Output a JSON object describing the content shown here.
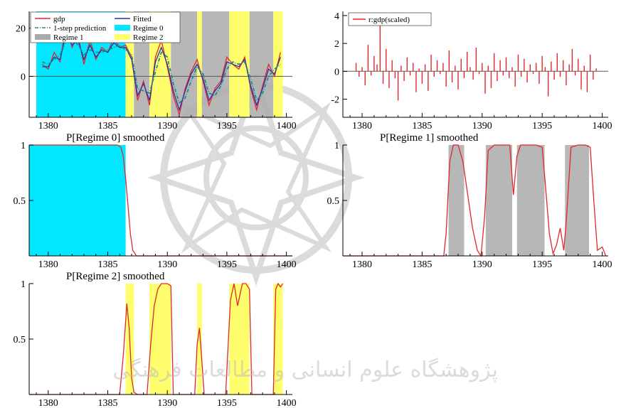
{
  "colors": {
    "gdp": "#e3262b",
    "fitted": "#2b2fa6",
    "prediction": "#1d8f80",
    "regime0": "#00e8ff",
    "regime1": "#aaaaaa",
    "regime2": "#ffff6e",
    "zero_line": "#555555"
  },
  "watermark": {
    "text": "پژوهشگاه علوم انسانی و مطالعات فرهنگی",
    "emblem": "arabesque-star-logo"
  },
  "chart_data": [
    {
      "id": "p1",
      "type": "line",
      "title": "",
      "xlim": [
        1378.4,
        1400.5
      ],
      "ylim": [
        -17,
        27
      ],
      "xticks": [
        1380,
        1385,
        1390,
        1395,
        1400
      ],
      "yticks": [
        0,
        20
      ],
      "zero_line": true,
      "legend": [
        {
          "label": "gdp",
          "color_key": "gdp",
          "style": "line"
        },
        {
          "label": "1-step prediction",
          "color_key": "prediction",
          "style": "dashdot"
        },
        {
          "label": "Regime 1",
          "color_key": "regime1",
          "style": "fill"
        },
        {
          "label": "Fitted",
          "color_key": "fitted",
          "style": "line"
        },
        {
          "label": "Regime 0",
          "color_key": "regime0",
          "style": "fill"
        },
        {
          "label": "Regime 2",
          "color_key": "regime2",
          "style": "fill"
        }
      ],
      "regimes": [
        {
          "regime": 0,
          "from": 1379.0,
          "to": 1386.5
        },
        {
          "regime": 2,
          "from": 1386.5,
          "to": 1387.2
        },
        {
          "regime": 1,
          "from": 1387.2,
          "to": 1388.5
        },
        {
          "regime": 2,
          "from": 1388.5,
          "to": 1390.3
        },
        {
          "regime": 1,
          "from": 1390.3,
          "to": 1392.5
        },
        {
          "regime": 2,
          "from": 1392.5,
          "to": 1392.9
        },
        {
          "regime": 1,
          "from": 1392.9,
          "to": 1395.2
        },
        {
          "regime": 2,
          "from": 1395.2,
          "to": 1396.9
        },
        {
          "regime": 1,
          "from": 1396.9,
          "to": 1398.9
        },
        {
          "regime": 2,
          "from": 1398.9,
          "to": 1399.7
        }
      ],
      "series": [
        {
          "name": "gdp",
          "color_key": "gdp",
          "style": "solid",
          "x": [
            1379.5,
            1380.0,
            1380.5,
            1381.0,
            1381.5,
            1382.0,
            1382.5,
            1383.0,
            1383.5,
            1384.0,
            1384.5,
            1385.0,
            1385.5,
            1386.0,
            1386.5,
            1387.0,
            1387.5,
            1388.0,
            1388.5,
            1389.0,
            1389.5,
            1390.0,
            1390.5,
            1391.0,
            1391.5,
            1392.0,
            1392.5,
            1393.0,
            1393.5,
            1394.0,
            1394.5,
            1395.0,
            1395.5,
            1396.0,
            1396.5,
            1397.0,
            1397.5,
            1398.0,
            1398.5,
            1399.0,
            1399.5
          ],
          "y": [
            5,
            3,
            10,
            6,
            22,
            12,
            17,
            5,
            15,
            7,
            12,
            10,
            16,
            12,
            13,
            8,
            -10,
            -2,
            -12,
            8,
            15,
            4,
            -8,
            -16,
            -5,
            2,
            7,
            -2,
            -12,
            -5,
            -2,
            8,
            5,
            3,
            8,
            -5,
            -14,
            -4,
            5,
            0,
            10
          ]
        },
        {
          "name": "Fitted",
          "color_key": "fitted",
          "style": "solid",
          "x": [
            1379.5,
            1380.0,
            1380.5,
            1381.0,
            1381.5,
            1382.0,
            1382.5,
            1383.0,
            1383.5,
            1384.0,
            1384.5,
            1385.0,
            1385.5,
            1386.0,
            1386.5,
            1387.0,
            1387.5,
            1388.0,
            1388.5,
            1389.0,
            1389.5,
            1390.0,
            1390.5,
            1391.0,
            1391.5,
            1392.0,
            1392.5,
            1393.0,
            1393.5,
            1394.0,
            1394.5,
            1395.0,
            1395.5,
            1396.0,
            1396.5,
            1397.0,
            1397.5,
            1398.0,
            1398.5,
            1399.0,
            1399.5
          ],
          "y": [
            4,
            4,
            8,
            7,
            18,
            13,
            15,
            7,
            13,
            8,
            11,
            10,
            14,
            12,
            12,
            7,
            -8,
            -3,
            -10,
            6,
            12,
            5,
            -6,
            -14,
            -6,
            1,
            5,
            -1,
            -10,
            -6,
            -3,
            6,
            5,
            4,
            7,
            -4,
            -12,
            -5,
            3,
            1,
            8
          ]
        },
        {
          "name": "1-step prediction",
          "color_key": "prediction",
          "style": "dashdot",
          "x": [
            1379.5,
            1380.0,
            1380.5,
            1381.0,
            1381.5,
            1382.0,
            1382.5,
            1383.0,
            1383.5,
            1384.0,
            1384.5,
            1385.0,
            1385.5,
            1386.0,
            1386.5,
            1387.0,
            1387.5,
            1388.0,
            1388.5,
            1389.0,
            1389.5,
            1390.0,
            1390.5,
            1391.0,
            1391.5,
            1392.0,
            1392.5,
            1393.0,
            1393.5,
            1394.0,
            1394.5,
            1395.0,
            1395.5,
            1396.0,
            1396.5,
            1397.0,
            1397.5,
            1398.0,
            1398.5,
            1399.0,
            1399.5
          ],
          "y": [
            6,
            5,
            7,
            9,
            15,
            16,
            13,
            9,
            11,
            10,
            10,
            11,
            12,
            13,
            11,
            9,
            -5,
            -6,
            -7,
            2,
            10,
            8,
            -3,
            -11,
            -9,
            -2,
            4,
            1,
            -7,
            -8,
            -4,
            3,
            6,
            5,
            6,
            -1,
            -10,
            -7,
            0,
            3,
            5
          ]
        }
      ]
    },
    {
      "id": "p2",
      "type": "bar",
      "title": "",
      "xlim": [
        1378.4,
        1400.5
      ],
      "ylim": [
        -3.3,
        4.3
      ],
      "xticks": [
        1380,
        1385,
        1390,
        1395,
        1400
      ],
      "yticks": [
        -2,
        0,
        2,
        4
      ],
      "zero_line": true,
      "legend": [
        {
          "label": "r:gdp(scaled)",
          "color_key": "gdp",
          "style": "line"
        }
      ],
      "series": [
        {
          "name": "r:gdp(scaled)",
          "color_key": "gdp",
          "x": [
            1379.5,
            1379.75,
            1380.0,
            1380.25,
            1380.5,
            1380.75,
            1381.0,
            1381.25,
            1381.5,
            1381.75,
            1382.0,
            1382.25,
            1382.5,
            1382.75,
            1383.0,
            1383.25,
            1383.5,
            1383.75,
            1384.0,
            1384.25,
            1384.5,
            1384.75,
            1385.0,
            1385.25,
            1385.5,
            1385.75,
            1386.0,
            1386.25,
            1386.5,
            1386.75,
            1387.0,
            1387.25,
            1387.5,
            1387.75,
            1388.0,
            1388.25,
            1388.5,
            1388.75,
            1389.0,
            1389.25,
            1389.5,
            1389.75,
            1390.0,
            1390.25,
            1390.5,
            1390.75,
            1391.0,
            1391.25,
            1391.5,
            1391.75,
            1392.0,
            1392.25,
            1392.5,
            1392.75,
            1393.0,
            1393.25,
            1393.5,
            1393.75,
            1394.0,
            1394.25,
            1394.5,
            1394.75,
            1395.0,
            1395.25,
            1395.5,
            1395.75,
            1396.0,
            1396.25,
            1396.5,
            1396.75,
            1397.0,
            1397.25,
            1397.5,
            1397.75,
            1398.0,
            1398.25,
            1398.5,
            1398.75,
            1399.0,
            1399.25,
            1399.5
          ],
          "values": [
            0.6,
            -0.4,
            0.3,
            -1.0,
            1.9,
            -0.3,
            1.1,
            0.5,
            3.4,
            -0.9,
            1.6,
            -1.2,
            0.8,
            -0.5,
            -2.1,
            0.4,
            -0.7,
            1.0,
            -0.3,
            0.6,
            -1.5,
            0.2,
            -0.9,
            0.5,
            -1.4,
            1.2,
            -0.4,
            0.8,
            -0.2,
            0.6,
            -1.1,
            1.5,
            -0.8,
            0.4,
            -1.3,
            0.9,
            -0.5,
            1.4,
            0.3,
            -0.6,
            1.7,
            -0.2,
            0.6,
            -1.6,
            0.4,
            -1.2,
            1.3,
            -0.7,
            0.8,
            -0.3,
            1.0,
            -0.5,
            0.3,
            -1.1,
            1.2,
            -0.4,
            0.9,
            -0.8,
            0.5,
            -0.2,
            0.6,
            -0.9,
            1.1,
            0.3,
            -1.8,
            0.7,
            -0.6,
            1.3,
            -0.4,
            0.8,
            -1.0,
            0.5,
            1.6,
            -0.3,
            0.9,
            -1.3,
            0.4,
            -1.5,
            1.2,
            -0.6,
            0.2
          ]
        }
      ]
    },
    {
      "id": "p3",
      "type": "area",
      "title": "P[Regime 0] smoothed",
      "xlim": [
        1378.4,
        1400.5
      ],
      "ylim": [
        0,
        1
      ],
      "xticks": [
        1380,
        1385,
        1390,
        1395,
        1400
      ],
      "yticks": [
        0.5,
        1.0
      ],
      "regimes": [
        {
          "regime": 0,
          "from": 1378.4,
          "to": 1386.5
        }
      ],
      "series": [
        {
          "name": "P[Regime 0]",
          "color_key": "gdp",
          "x": [
            1378.4,
            1385.8,
            1386.1,
            1386.3,
            1386.5,
            1386.7,
            1386.9,
            1387.1,
            1387.4,
            1400.5
          ],
          "y": [
            1.0,
            1.0,
            0.98,
            0.9,
            0.7,
            0.45,
            0.2,
            0.05,
            0.0,
            0.0
          ]
        }
      ]
    },
    {
      "id": "p4",
      "type": "area",
      "title": "P[Regime 1] smoothed",
      "xlim": [
        1378.4,
        1400.5
      ],
      "ylim": [
        0,
        1
      ],
      "xticks": [
        1380,
        1385,
        1390,
        1395,
        1400
      ],
      "yticks": [
        0.5,
        1.0
      ],
      "regimes": [
        {
          "regime": 1,
          "from": 1387.2,
          "to": 1388.5
        },
        {
          "regime": 1,
          "from": 1390.3,
          "to": 1392.5
        },
        {
          "regime": 1,
          "from": 1392.9,
          "to": 1395.2
        },
        {
          "regime": 1,
          "from": 1396.9,
          "to": 1398.9
        }
      ],
      "series": [
        {
          "name": "P[Regime 1]",
          "color_key": "gdp",
          "x": [
            1378.4,
            1386.8,
            1387.0,
            1387.3,
            1387.6,
            1388.0,
            1388.4,
            1388.8,
            1389.2,
            1389.6,
            1389.9,
            1390.2,
            1390.5,
            1391.0,
            1391.8,
            1392.3,
            1392.6,
            1392.9,
            1393.2,
            1393.7,
            1394.5,
            1395.0,
            1395.3,
            1395.6,
            1395.9,
            1396.2,
            1396.5,
            1396.8,
            1397.0,
            1397.4,
            1398.0,
            1398.6,
            1399.0,
            1399.3,
            1399.6,
            1400.0,
            1400.3
          ],
          "y": [
            0.0,
            0.0,
            0.2,
            0.85,
            1.0,
            1.0,
            0.85,
            0.55,
            0.25,
            0.05,
            0.0,
            0.35,
            0.95,
            1.0,
            1.0,
            1.0,
            0.55,
            0.9,
            1.0,
            1.0,
            1.0,
            0.98,
            0.6,
            0.2,
            0.02,
            0.1,
            0.25,
            0.05,
            0.3,
            0.98,
            1.0,
            1.0,
            0.98,
            0.5,
            0.05,
            0.08,
            0.0
          ]
        }
      ]
    },
    {
      "id": "p5",
      "type": "area",
      "title": "P[Regime 2] smoothed",
      "xlim": [
        1378.4,
        1400.5
      ],
      "ylim": [
        0,
        1
      ],
      "xticks": [
        1380,
        1385,
        1390,
        1395,
        1400
      ],
      "yticks": [
        0.5,
        1.0
      ],
      "regimes": [
        {
          "regime": 2,
          "from": 1386.5,
          "to": 1387.2
        },
        {
          "regime": 2,
          "from": 1388.5,
          "to": 1390.3
        },
        {
          "regime": 2,
          "from": 1392.5,
          "to": 1392.9
        },
        {
          "regime": 2,
          "from": 1395.2,
          "to": 1396.9
        },
        {
          "regime": 2,
          "from": 1398.9,
          "to": 1399.7
        }
      ],
      "series": [
        {
          "name": "P[Regime 2]",
          "color_key": "gdp",
          "x": [
            1378.4,
            1386.0,
            1386.3,
            1386.6,
            1386.8,
            1387.0,
            1387.2,
            1387.5,
            1388.3,
            1388.6,
            1388.9,
            1389.2,
            1389.5,
            1390.0,
            1390.3,
            1390.5,
            1392.3,
            1392.5,
            1392.7,
            1392.9,
            1393.1,
            1394.9,
            1395.3,
            1395.6,
            1395.9,
            1396.3,
            1396.6,
            1396.9,
            1397.1,
            1398.9,
            1399.1,
            1399.3,
            1399.5,
            1399.7
          ],
          "y": [
            0.0,
            0.0,
            0.35,
            0.82,
            0.6,
            0.15,
            0.02,
            0.0,
            0.0,
            0.45,
            0.8,
            0.95,
            1.0,
            1.0,
            0.98,
            0.0,
            0.0,
            0.45,
            0.6,
            0.3,
            0.0,
            0.0,
            0.85,
            1.0,
            0.8,
            1.0,
            1.0,
            0.95,
            0.0,
            0.0,
            0.95,
            1.0,
            0.97,
            1.0
          ]
        }
      ]
    }
  ]
}
